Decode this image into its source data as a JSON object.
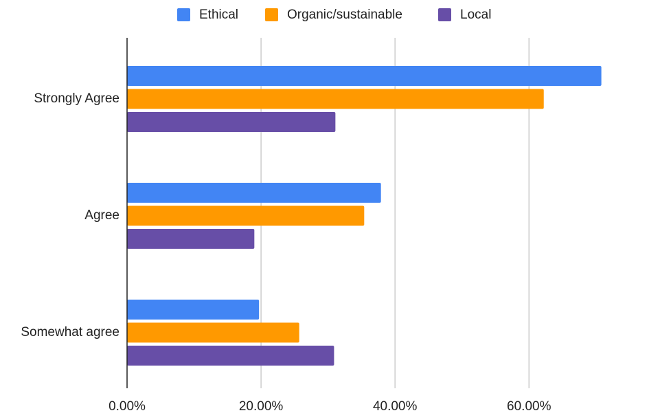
{
  "chart_data": {
    "type": "hbar",
    "categories": [
      "Strongly Agree",
      "Agree",
      "Somewhat agree"
    ],
    "series": [
      {
        "name": "Ethical",
        "color": "#4285f4",
        "values": [
          70.8,
          37.9,
          19.7
        ]
      },
      {
        "name": "Organic/sustainable",
        "color": "#ff9900",
        "values": [
          62.2,
          35.4,
          25.7
        ]
      },
      {
        "name": "Local",
        "color": "#674ea7",
        "values": [
          31.1,
          19.0,
          30.9
        ]
      }
    ],
    "xlim": [
      0,
      77.4
    ],
    "xticks": [
      {
        "value": 0,
        "label": "0.00%"
      },
      {
        "value": 20,
        "label": "20.00%"
      },
      {
        "value": 40,
        "label": "40.00%"
      },
      {
        "value": 60,
        "label": "60.00%"
      }
    ],
    "grid": true,
    "legend": "top"
  }
}
